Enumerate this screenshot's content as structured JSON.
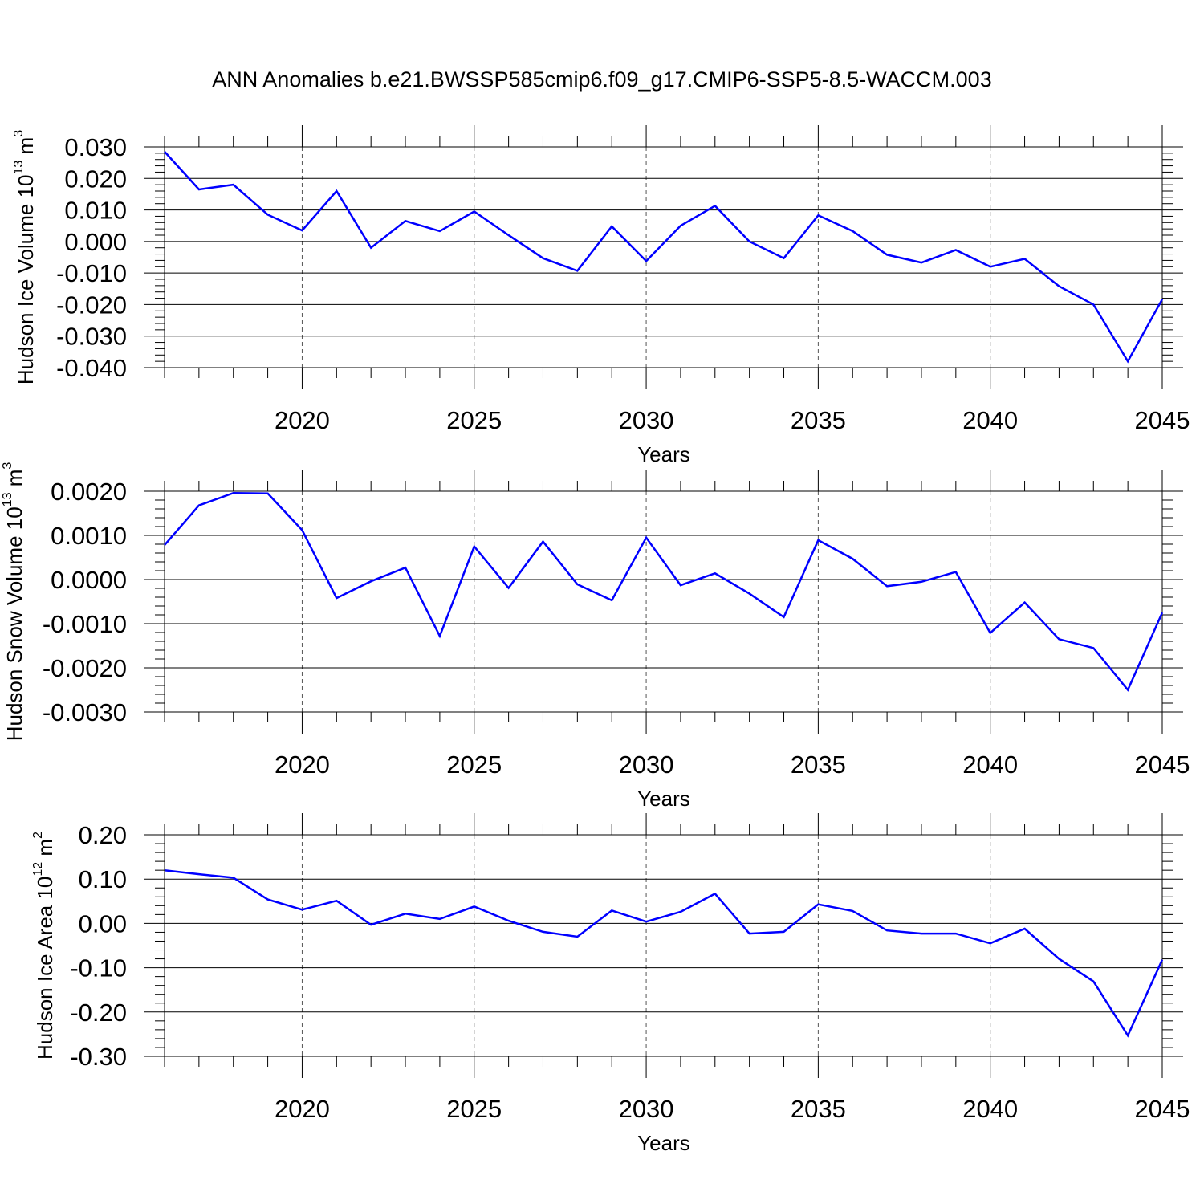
{
  "title": "ANN Anomalies b.e21.BWSSP585cmip6.f09_g17.CMIP6-SSP5-8.5-WACCM.003",
  "chart_data": [
    {
      "type": "line",
      "ylabel": "Hudson Ice Volume 10",
      "ylabel_exp": "13",
      "ylabel_unit": "m",
      "ylabel_unit_exp": "3",
      "xlabel": "Years",
      "xlim": [
        2016,
        2045
      ],
      "ylim": [
        -0.04,
        0.03
      ],
      "yticks": [
        -0.04,
        -0.03,
        -0.02,
        -0.01,
        0.0,
        0.01,
        0.02,
        0.03
      ],
      "ytick_labels": [
        "-0.040",
        "-0.030",
        "-0.020",
        "-0.010",
        "0.000",
        "0.010",
        "0.020",
        "0.030"
      ],
      "xticks": [
        2020,
        2025,
        2030,
        2035,
        2040,
        2045
      ],
      "xtick_labels": [
        "2020",
        "2025",
        "2030",
        "2035",
        "2040",
        "2045"
      ],
      "grid": "vertical dashed at major x ticks",
      "line_color": "#0000ff",
      "x": [
        2016,
        2017,
        2018,
        2019,
        2020,
        2021,
        2022,
        2023,
        2024,
        2025,
        2026,
        2027,
        2028,
        2029,
        2030,
        2031,
        2032,
        2033,
        2034,
        2035,
        2036,
        2037,
        2038,
        2039,
        2040,
        2041,
        2042,
        2043,
        2044,
        2045
      ],
      "values": [
        0.0285,
        0.0165,
        0.018,
        0.0085,
        0.0035,
        0.016,
        -0.002,
        0.0065,
        0.0033,
        0.0095,
        0.002,
        -0.0053,
        -0.0093,
        0.0048,
        -0.0062,
        0.005,
        0.0113,
        0.0,
        -0.0053,
        0.0083,
        0.0033,
        -0.0042,
        -0.0067,
        -0.0027,
        -0.008,
        -0.0055,
        -0.0142,
        -0.02,
        -0.038,
        -0.0183
      ]
    },
    {
      "type": "line",
      "ylabel": "Hudson Snow Volume 10",
      "ylabel_exp": "13",
      "ylabel_unit": "m",
      "ylabel_unit_exp": "3",
      "xlabel": "Years",
      "xlim": [
        2016,
        2045
      ],
      "ylim": [
        -0.003,
        0.002
      ],
      "yticks": [
        -0.003,
        -0.002,
        -0.001,
        0.0,
        0.001,
        0.002
      ],
      "ytick_labels": [
        "-0.0030",
        "-0.0020",
        "-0.0010",
        "0.0000",
        "0.0010",
        "0.0020"
      ],
      "xticks": [
        2020,
        2025,
        2030,
        2035,
        2040,
        2045
      ],
      "xtick_labels": [
        "2020",
        "2025",
        "2030",
        "2035",
        "2040",
        "2045"
      ],
      "grid": "vertical dashed at major x ticks",
      "line_color": "#0000ff",
      "x": [
        2016,
        2017,
        2018,
        2019,
        2020,
        2021,
        2022,
        2023,
        2024,
        2025,
        2026,
        2027,
        2028,
        2029,
        2030,
        2031,
        2032,
        2033,
        2034,
        2035,
        2036,
        2037,
        2038,
        2039,
        2040,
        2041,
        2042,
        2043,
        2044,
        2045
      ],
      "values": [
        0.00078,
        0.00168,
        0.00196,
        0.00195,
        0.00112,
        -0.00042,
        -4e-05,
        0.00027,
        -0.00128,
        0.00075,
        -0.00019,
        0.00086,
        -0.00011,
        -0.00047,
        0.00095,
        -0.00013,
        0.00014,
        -0.00032,
        -0.00085,
        0.00089,
        0.00047,
        -0.00015,
        -5e-05,
        0.00017,
        -0.00121,
        -0.00052,
        -0.00135,
        -0.00155,
        -0.0025,
        -0.00075
      ]
    },
    {
      "type": "line",
      "ylabel": "Hudson Ice Area 10",
      "ylabel_exp": "12",
      "ylabel_unit": "m",
      "ylabel_unit_exp": "2",
      "xlabel": "Years",
      "xlim": [
        2016,
        2045
      ],
      "ylim": [
        -0.3,
        0.2
      ],
      "yticks": [
        -0.3,
        -0.2,
        -0.1,
        0.0,
        0.1,
        0.2
      ],
      "ytick_labels": [
        "-0.30",
        "-0.20",
        "-0.10",
        "0.00",
        "0.10",
        "0.20"
      ],
      "xticks": [
        2020,
        2025,
        2030,
        2035,
        2040,
        2045
      ],
      "xtick_labels": [
        "2020",
        "2025",
        "2030",
        "2035",
        "2040",
        "2045"
      ],
      "grid": "vertical dashed at major x ticks",
      "line_color": "#0000ff",
      "x": [
        2016,
        2017,
        2018,
        2019,
        2020,
        2021,
        2022,
        2023,
        2024,
        2025,
        2026,
        2027,
        2028,
        2029,
        2030,
        2031,
        2032,
        2033,
        2034,
        2035,
        2036,
        2037,
        2038,
        2039,
        2040,
        2041,
        2042,
        2043,
        2044,
        2045
      ],
      "values": [
        0.12,
        0.111,
        0.103,
        0.054,
        0.031,
        0.051,
        -0.003,
        0.022,
        0.01,
        0.038,
        0.006,
        -0.019,
        -0.03,
        0.029,
        0.004,
        0.026,
        0.067,
        -0.023,
        -0.019,
        0.043,
        0.028,
        -0.016,
        -0.023,
        -0.023,
        -0.045,
        -0.012,
        -0.08,
        -0.131,
        -0.253,
        -0.082
      ]
    }
  ]
}
